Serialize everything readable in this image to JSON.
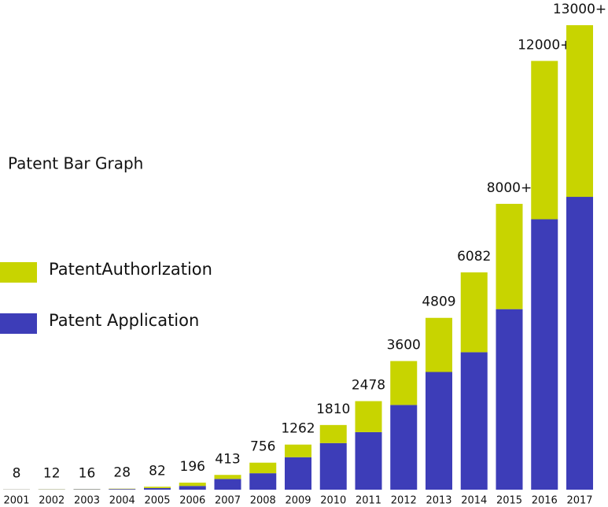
{
  "chart_data": {
    "type": "stacked_bar",
    "title": "Patent Bar Graph",
    "categories": [
      "2001",
      "2002",
      "2003",
      "2004",
      "2005",
      "2006",
      "2007",
      "2008",
      "2009",
      "2010",
      "2011",
      "2012",
      "2013",
      "2014",
      "2015",
      "2016",
      "2017"
    ],
    "series": [
      {
        "name": "Patent Application",
        "color": "#3d3db8",
        "values": [
          5,
          7,
          10,
          18,
          46,
          105,
          300,
          460,
          909,
          1304,
          1611,
          2371,
          3294,
          3847,
          5053,
          7569,
          8196
        ]
      },
      {
        "name": "PatentAuthorlzation",
        "color": "#c8d400",
        "values": [
          3,
          5,
          6,
          10,
          36,
          91,
          113,
          296,
          353,
          506,
          867,
          1229,
          1515,
          2235,
          2947,
          4431,
          4804
        ]
      }
    ],
    "totals": [
      8,
      12,
      16,
      28,
      82,
      196,
      413,
      756,
      1262,
      1810,
      2478,
      3600,
      4809,
      6082,
      8000,
      12000,
      13000
    ],
    "total_labels": [
      "8",
      "12",
      "16",
      "28",
      "82",
      "196",
      "413",
      "756",
      "1262",
      "1810",
      "2478",
      "3600",
      "4809",
      "6082",
      "8000+",
      "12000+",
      "13000+"
    ],
    "ylim": [
      0,
      13000
    ],
    "legend": "left"
  }
}
